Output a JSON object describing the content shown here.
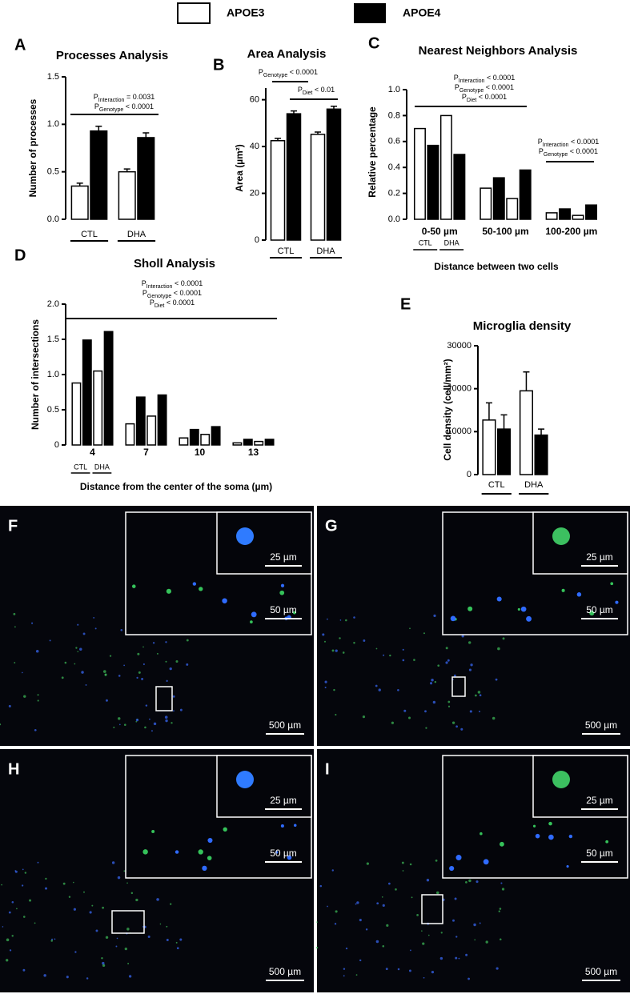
{
  "legend": [
    {
      "name": "APOE3",
      "color": "#ffffff"
    },
    {
      "name": "APOE4",
      "color": "#000000"
    }
  ],
  "chart_data": [
    {
      "type": "bar",
      "letter": "A",
      "title": "Processes Analysis",
      "y_label": "Number of processes",
      "categories": [
        "CTL",
        "DHA"
      ],
      "series": [
        {
          "color": "#ffffff",
          "values": [
            0.35,
            0.5
          ],
          "errors": [
            0.03,
            0.03
          ]
        },
        {
          "color": "#000000",
          "values": [
            0.93,
            0.86
          ],
          "errors": [
            0.05,
            0.05
          ]
        }
      ],
      "ylim": [
        0,
        1.5
      ],
      "yticks": [
        {
          "value": 0,
          "label": "0.0"
        },
        0.5,
        {
          "value": 1,
          "label": "1.0"
        },
        1.5
      ],
      "annotations": [
        {
          "lines": [
            {
              "p": "P",
              "sub": "Interaction",
              "text": " = 0.0031"
            },
            {
              "p": "P",
              "sub": "Genotype",
              "text": " < 0.0001"
            }
          ]
        }
      ]
    },
    {
      "type": "bar",
      "letter": "B",
      "title": "Area Analysis",
      "y_label": "Area (µm²)",
      "categories": [
        "CTL",
        "DHA"
      ],
      "series": [
        {
          "color": "#ffffff",
          "values": [
            42.5,
            45.2
          ],
          "errors": [
            1.0,
            1.0
          ]
        },
        {
          "color": "#000000",
          "values": [
            54,
            56
          ],
          "errors": [
            1.2,
            1.2
          ]
        }
      ],
      "ylim": [
        0,
        65
      ],
      "yticks": [
        0,
        20,
        40,
        60
      ],
      "annotations": [
        {
          "lines": [
            {
              "p": "P",
              "sub": "Genotype",
              "text": " < 0.0001"
            }
          ]
        },
        {
          "lines": [
            {
              "p": "P",
              "sub": "Diet",
              "text": " < 0.01"
            }
          ]
        }
      ]
    },
    {
      "type": "bar",
      "letter": "C",
      "title": "Nearest Neighbors Analysis",
      "y_label": "Relative percentage",
      "x_label": "Distance between two cells",
      "categories": [
        "0-50 µm",
        "50-100 µm",
        "100-200 µm"
      ],
      "sub_groups": [
        "CTL",
        "DHA"
      ],
      "series": [
        {
          "color": "#ffffff",
          "values": [
            0.7,
            0.24,
            0.05
          ]
        },
        {
          "color": "#000000",
          "values": [
            0.57,
            0.32,
            0.08
          ]
        },
        {
          "color": "#ffffff",
          "values": [
            0.8,
            0.16,
            0.03
          ]
        },
        {
          "color": "#000000",
          "values": [
            0.5,
            0.38,
            0.11
          ]
        }
      ],
      "ylim": [
        0,
        1.0
      ],
      "yticks": [
        {
          "value": 0,
          "label": "0.0"
        },
        0.2,
        0.4,
        0.6,
        0.8,
        {
          "value": 1,
          "label": "1.0"
        }
      ],
      "annotations": [
        {
          "lines": [
            {
              "p": "P",
              "sub": "Interaction",
              "text": " < 0.0001"
            },
            {
              "p": "P",
              "sub": "Genotype",
              "text": " < 0.0001"
            },
            {
              "p": "P",
              "sub": "Diet",
              "text": " < 0.0001"
            }
          ]
        },
        {
          "lines": [
            {
              "p": "P",
              "sub": "Interaction",
              "text": " < 0.0001"
            },
            {
              "p": "P",
              "sub": "Genotype",
              "text": " < 0.0001"
            }
          ]
        }
      ]
    },
    {
      "type": "bar",
      "letter": "D",
      "title": "Sholl Analysis",
      "y_label": "Number of intersections",
      "x_label": "Distance from the center of the soma (µm)",
      "categories": [
        "4",
        "7",
        "10",
        "13"
      ],
      "sub_groups": [
        "CTL",
        "DHA"
      ],
      "series": [
        {
          "color": "#ffffff",
          "values": [
            0.88,
            0.3,
            0.1,
            0.03
          ]
        },
        {
          "color": "#000000",
          "values": [
            1.49,
            0.68,
            0.22,
            0.08
          ]
        },
        {
          "color": "#ffffff",
          "values": [
            1.05,
            0.41,
            0.15,
            0.05
          ]
        },
        {
          "color": "#000000",
          "values": [
            1.61,
            0.71,
            0.26,
            0.08
          ]
        }
      ],
      "ylim": [
        0,
        2.0
      ],
      "yticks": [
        0,
        0.5,
        {
          "value": 1,
          "label": "1.0"
        },
        1.5,
        {
          "value": 2,
          "label": "2.0"
        }
      ],
      "annotations": [
        {
          "lines": [
            {
              "p": "P",
              "sub": "Interaction",
              "text": " < 0.0001"
            },
            {
              "p": "P",
              "sub": "Genotype",
              "text": " < 0.0001"
            },
            {
              "p": "P",
              "sub": "Diet",
              "text": " < 0.0001"
            }
          ]
        }
      ]
    },
    {
      "type": "bar",
      "letter": "E",
      "title": "Microglia density",
      "y_label": "Cell density (cell/mm²)",
      "categories": [
        "CTL",
        "DHA"
      ],
      "series": [
        {
          "color": "#ffffff",
          "values": [
            12700,
            19500
          ],
          "errors": [
            4000,
            4400
          ]
        },
        {
          "color": "#000000",
          "values": [
            10600,
            9200
          ],
          "errors": [
            3300,
            1400
          ]
        }
      ],
      "ylim": [
        0,
        30000
      ],
      "yticks": [
        0,
        10000,
        20000,
        30000
      ],
      "annotations": []
    }
  ],
  "micrographs": [
    {
      "letter": "F",
      "scale_bars": [
        "500 µm",
        "50 µm",
        "25 µm"
      ]
    },
    {
      "letter": "G",
      "scale_bars": [
        "500 µm",
        "50 µm",
        "25 µm"
      ]
    },
    {
      "letter": "H",
      "scale_bars": [
        "500 µm",
        "50 µm",
        "25 µm"
      ]
    },
    {
      "letter": "I",
      "scale_bars": [
        "500 µm",
        "50 µm",
        "25 µm"
      ]
    }
  ]
}
